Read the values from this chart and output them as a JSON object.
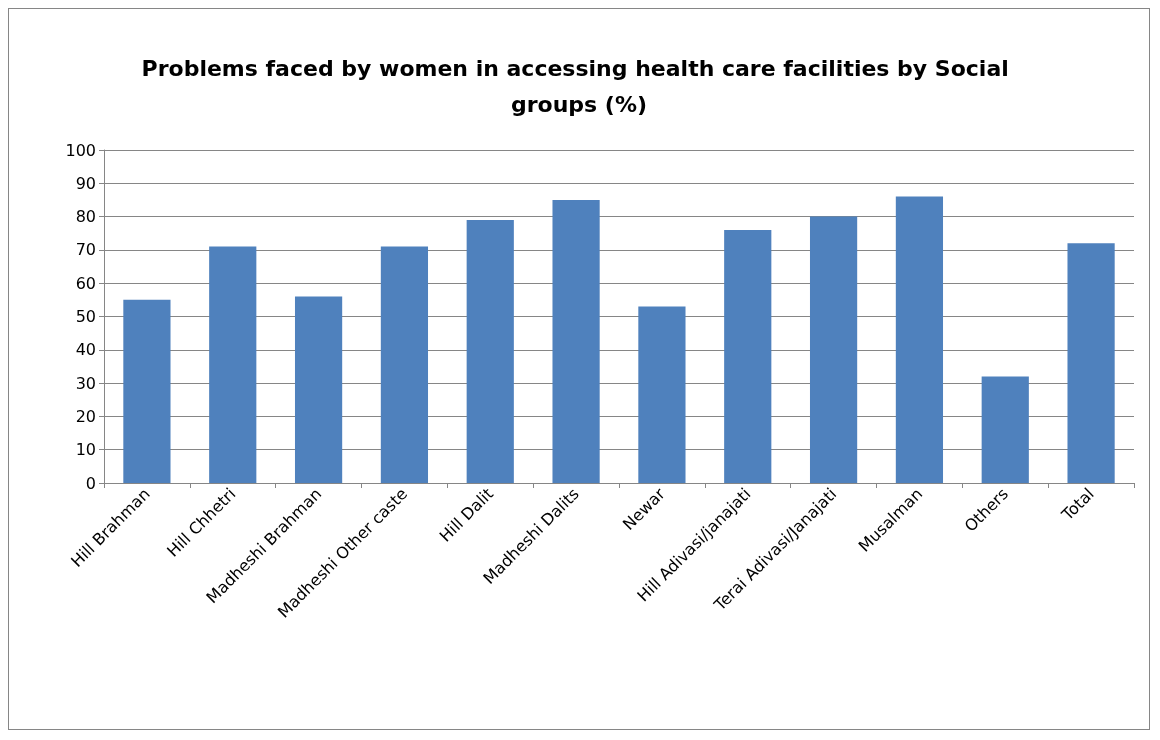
{
  "chart_data": {
    "type": "bar",
    "title": "Problems faced by women in accessing health care facilities by Social groups (%)",
    "categories": [
      "Hill Brahman",
      "Hill Chhetri",
      "Madheshi Brahman",
      "Madheshi Other caste",
      "Hill Dalit",
      "Madheshi Dalits",
      "Newar",
      "Hill Adivasi/janajati",
      "Terai Adivasi/Janajati",
      "Musalman",
      "Others",
      "Total"
    ],
    "values": [
      55,
      71,
      56,
      71,
      79,
      85,
      53,
      76,
      80,
      86,
      32,
      72
    ],
    "color": "#4f81bd",
    "ylim": [
      0,
      100
    ],
    "yticks": [
      0,
      10,
      20,
      30,
      40,
      50,
      60,
      70,
      80,
      90,
      100
    ],
    "grid": "y"
  }
}
